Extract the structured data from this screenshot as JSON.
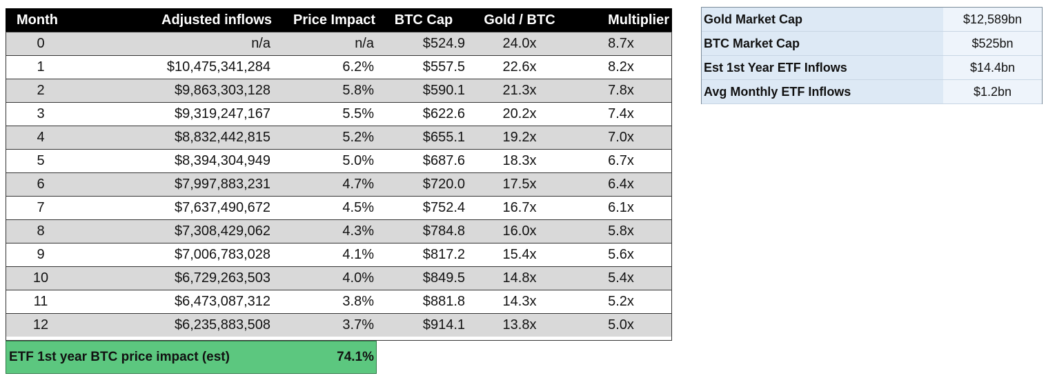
{
  "table": {
    "header": [
      "Month",
      "Adjusted inflows",
      "Price Impact",
      "BTC Cap",
      "Gold / BTC",
      "Multiplier"
    ],
    "rows": [
      [
        "0",
        "n/a",
        "n/a",
        "$524.9",
        "24.0x",
        "8.7x"
      ],
      [
        "1",
        "$10,475,341,284",
        "6.2%",
        "$557.5",
        "22.6x",
        "8.2x"
      ],
      [
        "2",
        "$9,863,303,128",
        "5.8%",
        "$590.1",
        "21.3x",
        "7.8x"
      ],
      [
        "3",
        "$9,319,247,167",
        "5.5%",
        "$622.6",
        "20.2x",
        "7.4x"
      ],
      [
        "4",
        "$8,832,442,815",
        "5.2%",
        "$655.1",
        "19.2x",
        "7.0x"
      ],
      [
        "5",
        "$8,394,304,949",
        "5.0%",
        "$687.6",
        "18.3x",
        "6.7x"
      ],
      [
        "6",
        "$7,997,883,231",
        "4.7%",
        "$720.0",
        "17.5x",
        "6.4x"
      ],
      [
        "7",
        "$7,637,490,672",
        "4.5%",
        "$752.4",
        "16.7x",
        "6.1x"
      ],
      [
        "8",
        "$7,308,429,062",
        "4.3%",
        "$784.8",
        "16.0x",
        "5.8x"
      ],
      [
        "9",
        "$7,006,783,028",
        "4.1%",
        "$817.2",
        "15.4x",
        "5.6x"
      ],
      [
        "10",
        "$6,729,263,503",
        "4.0%",
        "$849.5",
        "14.8x",
        "5.4x"
      ],
      [
        "11",
        "$6,473,087,312",
        "3.8%",
        "$881.8",
        "14.3x",
        "5.2x"
      ],
      [
        "12",
        "$6,235,883,508",
        "3.7%",
        "$914.1",
        "13.8x",
        "5.0x"
      ]
    ],
    "footer": {
      "label": "ETF 1st year BTC price impact (est)",
      "value": "74.1%"
    }
  },
  "summary": {
    "rows": [
      [
        "Gold Market Cap",
        "$12,589bn"
      ],
      [
        "BTC Market Cap",
        "$525bn"
      ],
      [
        "Est 1st Year ETF Inflows",
        "$14.4bn"
      ],
      [
        "Avg Monthly ETF Inflows",
        "$1.2bn"
      ]
    ]
  }
}
